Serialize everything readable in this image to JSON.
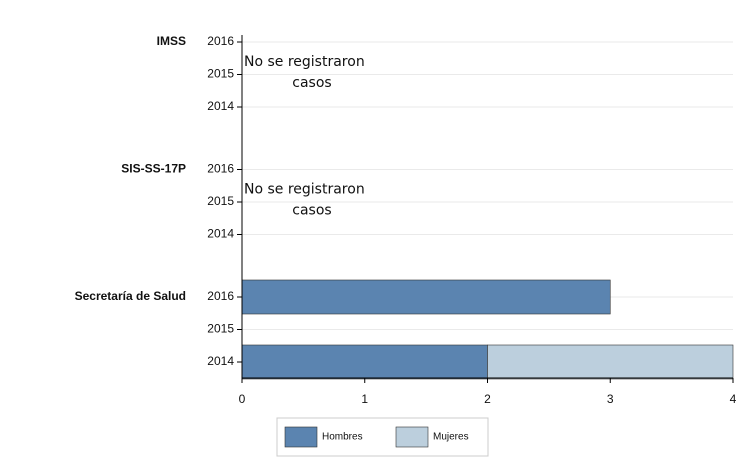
{
  "chart_data": {
    "type": "stacked-barh",
    "groups": [
      {
        "label": "IMSS",
        "categories": [
          "2016",
          "2015",
          "2014"
        ],
        "annotation": [
          "No se  registraron",
          "casos"
        ]
      },
      {
        "label": "SIS-SS-17P",
        "categories": [
          "2016",
          "2015",
          "2014"
        ],
        "annotation": [
          "No se  registraron",
          "casos"
        ]
      },
      {
        "label": "Secretaría de Salud",
        "categories": [
          "2016",
          "2015",
          "2014"
        ]
      }
    ],
    "series": [
      {
        "name": "Hombres",
        "color": "#5b84b0",
        "values": [
          [
            null,
            null,
            null
          ],
          [
            null,
            null,
            null
          ],
          [
            3,
            null,
            2
          ]
        ]
      },
      {
        "name": "Mujeres",
        "color": "#bccfdd",
        "values": [
          [
            null,
            null,
            null
          ],
          [
            null,
            null,
            null
          ],
          [
            null,
            null,
            2
          ]
        ]
      }
    ],
    "xlim": [
      0,
      4
    ],
    "xticks": [
      0,
      1,
      2,
      3,
      4
    ],
    "grid": true
  }
}
